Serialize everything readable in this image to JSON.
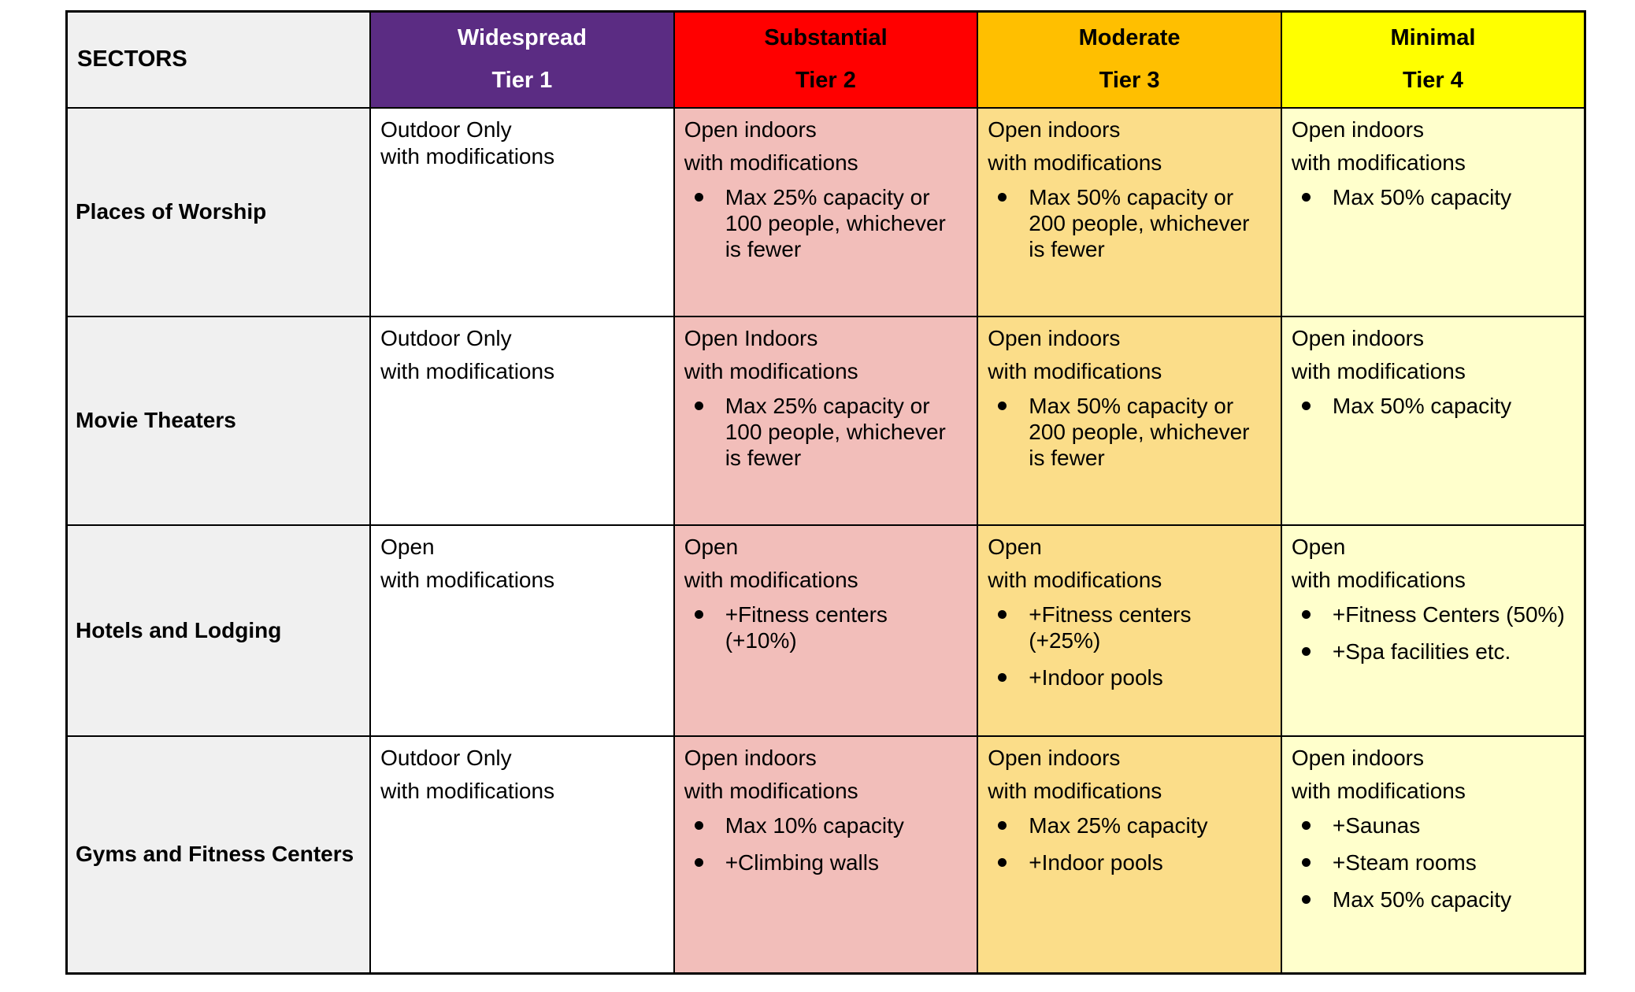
{
  "table": {
    "header": {
      "sectors_label": "SECTORS",
      "tiers": [
        {
          "name": "Widespread",
          "tier": "Tier 1",
          "bg": "#5B2C83",
          "text_color": "#FFFFFF"
        },
        {
          "name": "Substantial",
          "tier": "Tier 2",
          "bg": "#FF0000",
          "text_color": "#000000"
        },
        {
          "name": "Moderate",
          "tier": "Tier 3",
          "bg": "#FFBF00",
          "text_color": "#000000"
        },
        {
          "name": "Minimal",
          "tier": "Tier 4",
          "bg": "#FFFF00",
          "text_color": "#000000"
        }
      ]
    },
    "body_colors": {
      "tier1": "#FFFFFF",
      "tier2": "#F2BEBA",
      "tier3": "#FBDD89",
      "tier4": "#FFFFCC",
      "sector_column": "#F0F0F0"
    },
    "rows": [
      {
        "sector": "Places of Worship",
        "cells": [
          {
            "compact": true,
            "paragraphs": [
              "Outdoor Only",
              "with modifications"
            ],
            "bullets": []
          },
          {
            "paragraphs": [
              "Open indoors",
              "with modifications"
            ],
            "bullets": [
              "Max 25% capacity or\n100 people, whichever\nis fewer"
            ]
          },
          {
            "paragraphs": [
              "Open indoors",
              "with modifications"
            ],
            "bullets": [
              "Max 50% capacity or\n200 people, whichever\nis fewer"
            ]
          },
          {
            "paragraphs": [
              "Open indoors",
              "with modifications"
            ],
            "bullets": [
              "Max 50% capacity"
            ]
          }
        ]
      },
      {
        "sector": "Movie Theaters",
        "cells": [
          {
            "paragraphs": [
              "Outdoor Only",
              "with modifications"
            ],
            "bullets": []
          },
          {
            "paragraphs": [
              "Open Indoors",
              "with modifications"
            ],
            "bullets": [
              "Max 25% capacity or\n100 people, whichever\nis fewer"
            ]
          },
          {
            "paragraphs": [
              "Open indoors",
              "with modifications"
            ],
            "bullets": [
              "Max 50% capacity or\n200 people, whichever\nis fewer"
            ]
          },
          {
            "paragraphs": [
              "Open indoors",
              "with modifications"
            ],
            "bullets": [
              "Max 50% capacity"
            ]
          }
        ]
      },
      {
        "sector": "Hotels and Lodging",
        "cells": [
          {
            "paragraphs": [
              "Open",
              "with modifications"
            ],
            "bullets": []
          },
          {
            "paragraphs": [
              "Open",
              "with modifications"
            ],
            "bullets": [
              "+Fitness centers\n(+10%)"
            ]
          },
          {
            "paragraphs": [
              "Open",
              "with modifications"
            ],
            "bullets": [
              "+Fitness centers\n(+25%)",
              "+Indoor pools"
            ]
          },
          {
            "paragraphs": [
              "Open",
              "with modifications"
            ],
            "bullets": [
              "+Fitness Centers (50%)",
              "+Spa facilities etc."
            ]
          }
        ]
      },
      {
        "sector": "Gyms and Fitness Centers",
        "cells": [
          {
            "paragraphs": [
              "Outdoor Only",
              "with modifications"
            ],
            "bullets": []
          },
          {
            "paragraphs": [
              "Open indoors",
              "with modifications"
            ],
            "bullets": [
              "Max 10% capacity",
              "+Climbing walls"
            ]
          },
          {
            "paragraphs": [
              "Open indoors",
              "with modifications"
            ],
            "bullets": [
              "Max 25% capacity",
              "+Indoor pools"
            ]
          },
          {
            "paragraphs": [
              "Open indoors",
              "with modifications"
            ],
            "bullets": [
              "+Saunas",
              "+Steam rooms",
              "Max 50% capacity"
            ]
          }
        ]
      }
    ]
  }
}
